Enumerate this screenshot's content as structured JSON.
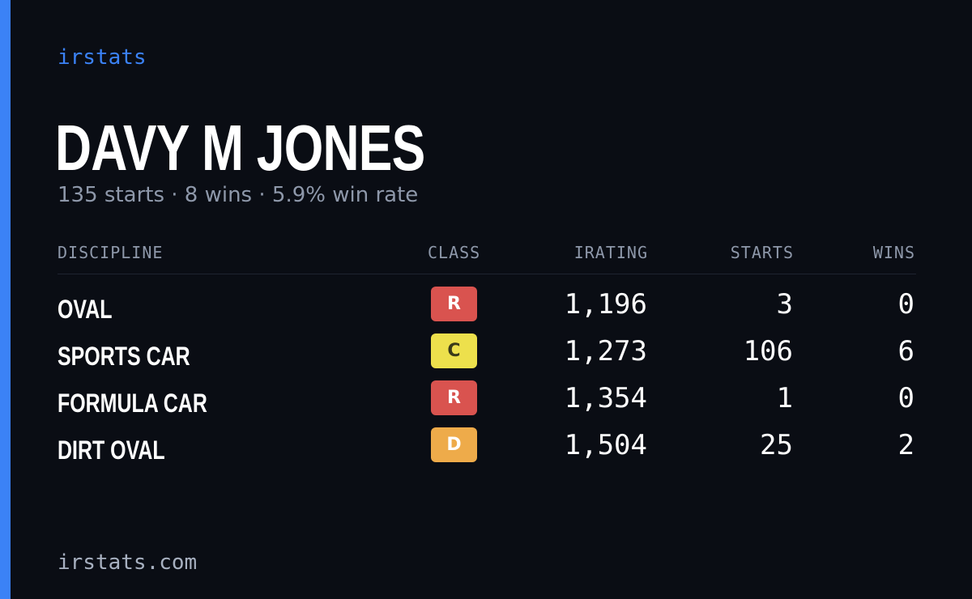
{
  "brand": "irstats",
  "driver_name": "DAVY M JONES",
  "summary": "135 starts · 8 wins · 5.9% win rate",
  "table": {
    "headers": {
      "discipline": "DISCIPLINE",
      "class": "CLASS",
      "irating": "IRATING",
      "starts": "STARTS",
      "wins": "WINS"
    },
    "rows": [
      {
        "discipline": "OVAL",
        "class": "R",
        "class_color": "#d9534f",
        "class_text_color": "#ffffff",
        "irating": "1,196",
        "starts": "3",
        "wins": "0"
      },
      {
        "discipline": "SPORTS CAR",
        "class": "C",
        "class_color": "#ede04c",
        "class_text_color": "#3a3a1a",
        "irating": "1,273",
        "starts": "106",
        "wins": "6"
      },
      {
        "discipline": "FORMULA CAR",
        "class": "R",
        "class_color": "#d9534f",
        "class_text_color": "#ffffff",
        "irating": "1,354",
        "starts": "1",
        "wins": "0"
      },
      {
        "discipline": "DIRT OVAL",
        "class": "D",
        "class_color": "#eeab4a",
        "class_text_color": "#ffffff",
        "irating": "1,504",
        "starts": "25",
        "wins": "2"
      }
    ]
  },
  "footer": "irstats.com",
  "colors": {
    "accent": "#3b82f6",
    "background": "#0a0d14",
    "muted_text": "#8e98aa"
  }
}
